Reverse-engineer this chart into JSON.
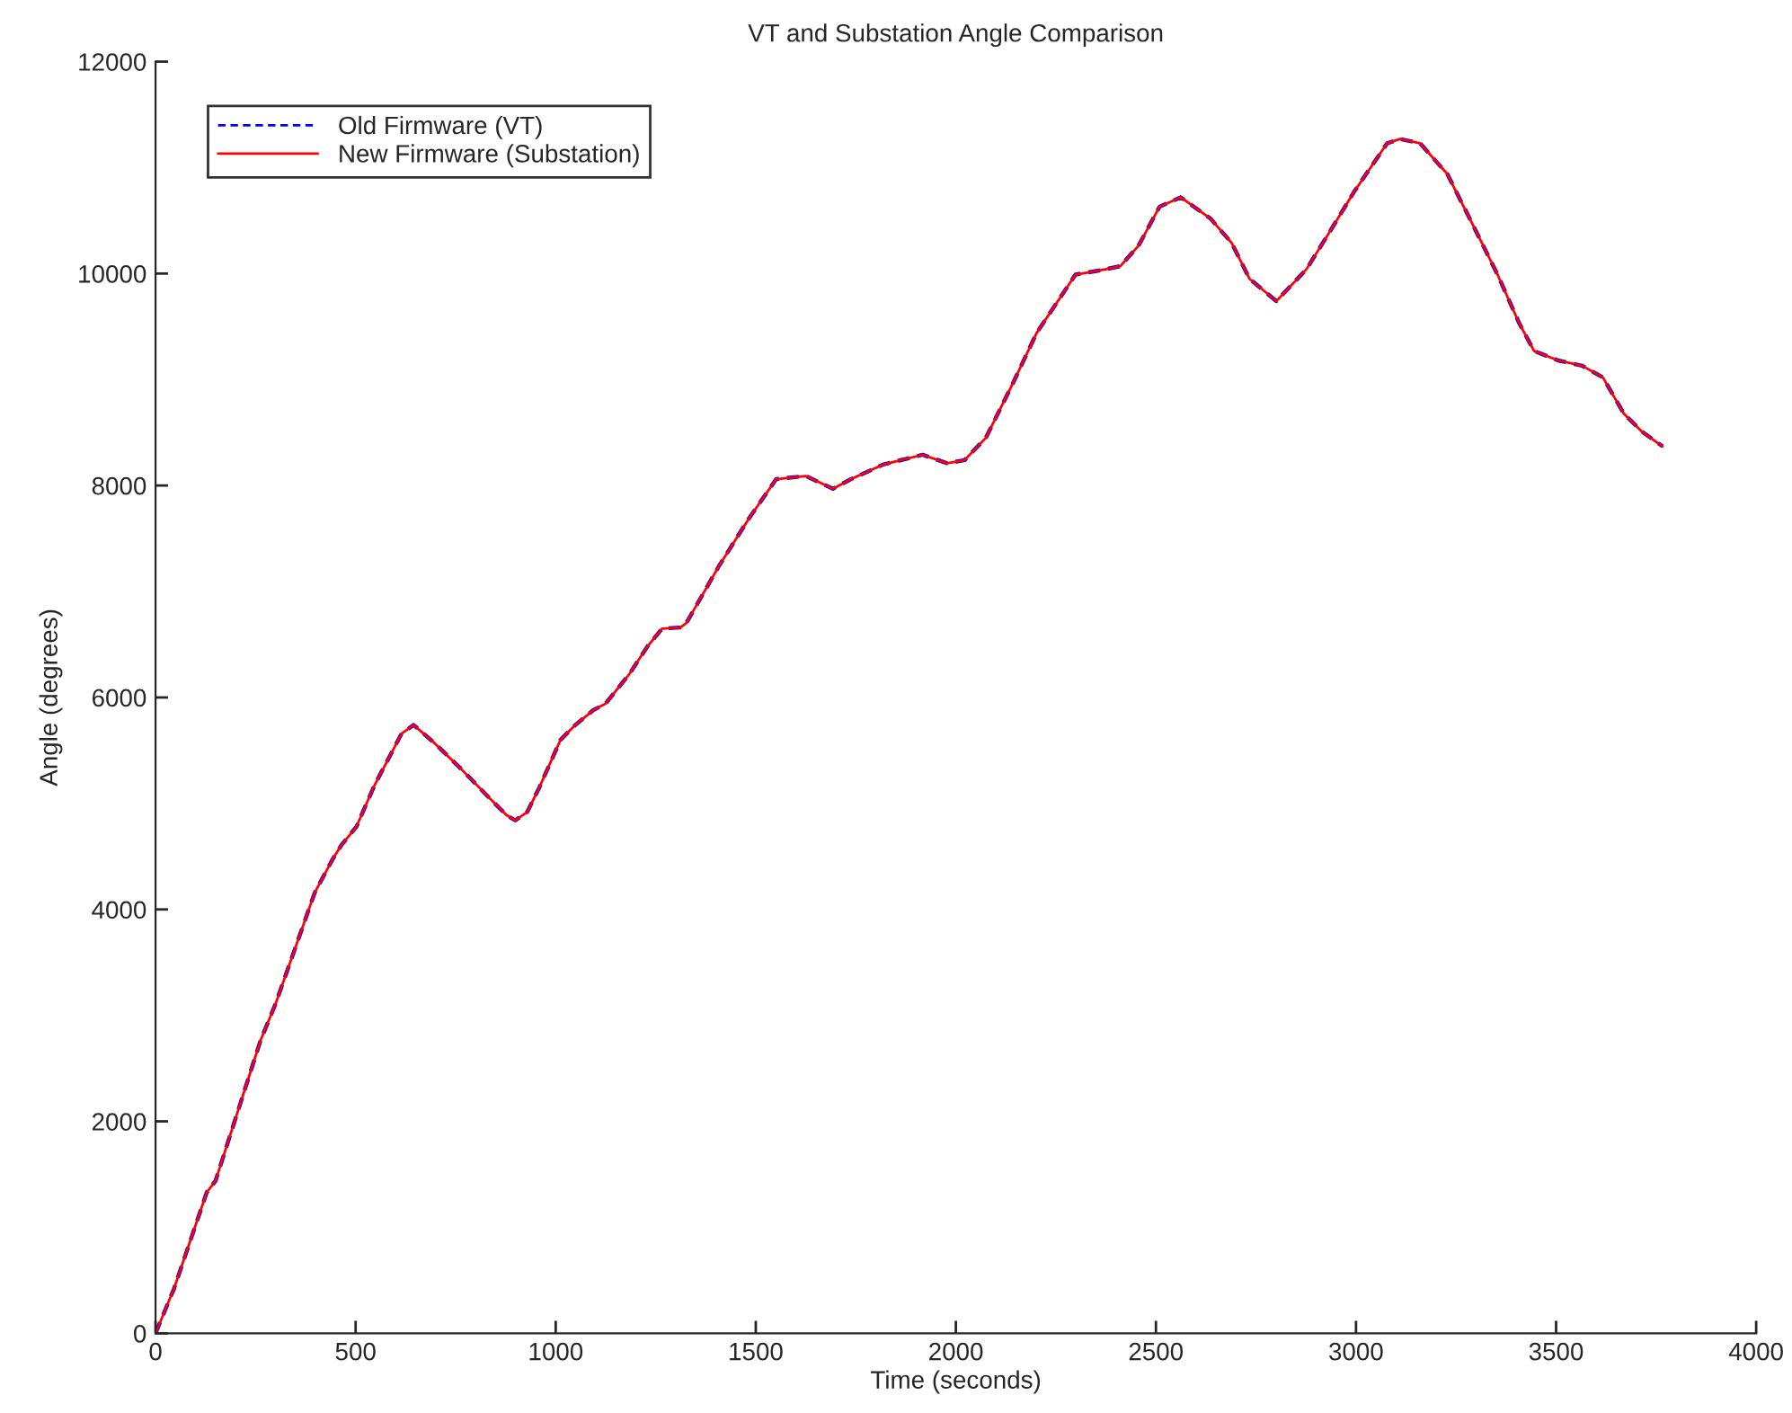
{
  "chart_data": {
    "type": "line",
    "title": "VT and Substation Angle Comparison",
    "xlabel": "Time (seconds)",
    "ylabel": "Angle (degrees)",
    "x": [
      0,
      46,
      128,
      150,
      263,
      300,
      398,
      442,
      465,
      502,
      547,
      615,
      645,
      697,
      765,
      832,
      877,
      899,
      929,
      959,
      1012,
      1049,
      1094,
      1124,
      1184,
      1229,
      1266,
      1311,
      1326,
      1408,
      1483,
      1551,
      1625,
      1693,
      1738,
      1820,
      1917,
      1978,
      2022,
      2075,
      2142,
      2202,
      2262,
      2299,
      2374,
      2411,
      2456,
      2509,
      2562,
      2636,
      2689,
      2734,
      2801,
      2876,
      2937,
      2995,
      3078,
      3110,
      3160,
      3228,
      3296,
      3355,
      3408,
      3445,
      3505,
      3565,
      3617,
      3669,
      3714,
      3766
    ],
    "series": [
      {
        "name": "Old Firmware (VT)",
        "color": "#0000ff",
        "line_style": "dashed",
        "values": [
          0,
          420,
          1330,
          1440,
          2770,
          3110,
          4160,
          4470,
          4610,
          4780,
          5170,
          5660,
          5740,
          5570,
          5320,
          5060,
          4890,
          4840,
          4920,
          5150,
          5600,
          5740,
          5880,
          5940,
          6220,
          6480,
          6650,
          6660,
          6700,
          7240,
          7690,
          8060,
          8090,
          7970,
          8060,
          8200,
          8290,
          8210,
          8240,
          8450,
          8960,
          9440,
          9780,
          9990,
          10040,
          10070,
          10260,
          10630,
          10720,
          10520,
          10290,
          9950,
          9740,
          10040,
          10410,
          10770,
          11230,
          11270,
          11230,
          10940,
          10430,
          9980,
          9530,
          9270,
          9180,
          9130,
          9020,
          8680,
          8510,
          8370
        ]
      },
      {
        "name": "New Firmware (Substation)",
        "color": "#ff0000",
        "line_style": "solid",
        "values": [
          0,
          420,
          1330,
          1440,
          2770,
          3110,
          4160,
          4470,
          4610,
          4780,
          5170,
          5660,
          5740,
          5570,
          5320,
          5060,
          4890,
          4840,
          4920,
          5150,
          5600,
          5740,
          5880,
          5940,
          6220,
          6480,
          6650,
          6660,
          6700,
          7240,
          7690,
          8060,
          8090,
          7970,
          8060,
          8200,
          8290,
          8210,
          8240,
          8450,
          8960,
          9440,
          9780,
          9990,
          10040,
          10070,
          10260,
          10630,
          10720,
          10520,
          10290,
          9950,
          9740,
          10040,
          10410,
          10770,
          11230,
          11270,
          11230,
          10940,
          10430,
          9980,
          9530,
          9270,
          9180,
          9130,
          9020,
          8680,
          8510,
          8370
        ]
      }
    ],
    "xlim": [
      0,
      4000
    ],
    "xticks": [
      0,
      500,
      1000,
      1500,
      2000,
      2500,
      3000,
      3500,
      4000
    ],
    "ylim": [
      0,
      12000
    ],
    "yticks": [
      0,
      2000,
      4000,
      6000,
      8000,
      10000,
      12000
    ],
    "legend": "top left"
  }
}
